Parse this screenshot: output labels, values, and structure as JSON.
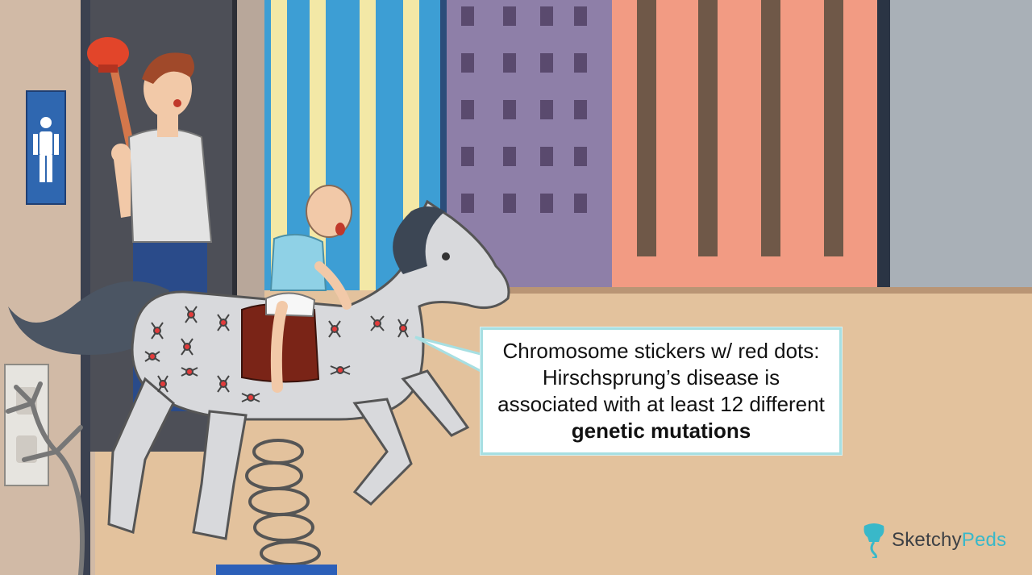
{
  "callout": {
    "text_before": "Chromosome stickers w/ red dots: Hirschsprung’s disease is associated with at least 12 different ",
    "text_bold": "genetic mutations"
  },
  "logo": {
    "part1": "Sketchy",
    "part2": "Peds",
    "icon": "tooth-icon"
  },
  "colors": {
    "accent": "#39b8c9",
    "callout_border": "#a7dfe2",
    "floor": "#e8c9a6",
    "sticker_dot": "#e23b3b"
  }
}
